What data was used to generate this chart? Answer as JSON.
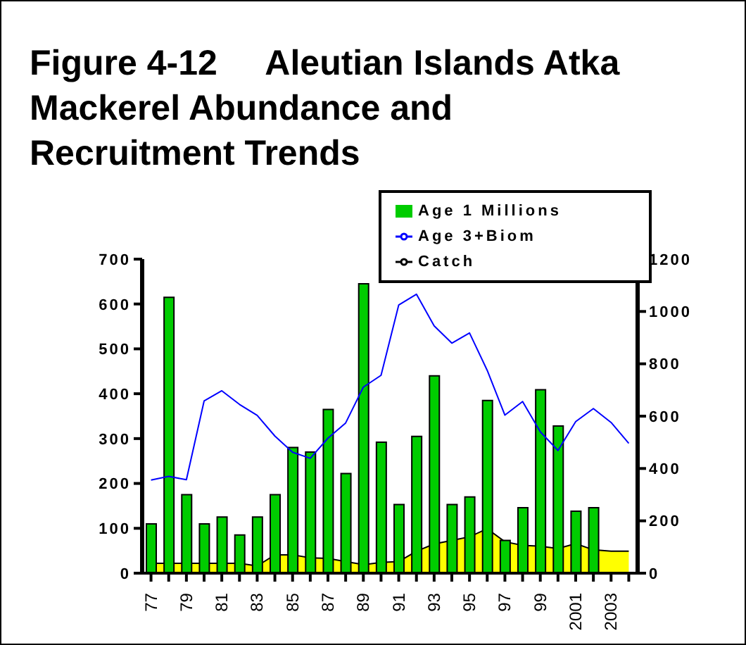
{
  "chart_data": {
    "type": "bar",
    "title": "Figure 4-12     Aleutian Islands Atka Mackerel Abundance and Recruitment Trends",
    "categories": [
      "77",
      null,
      "79",
      null,
      "81",
      null,
      "83",
      null,
      "85",
      null,
      "87",
      null,
      "89",
      null,
      "91",
      null,
      "93",
      null,
      "95",
      null,
      "97",
      null,
      "99",
      null,
      "2001",
      null,
      "2003",
      null
    ],
    "series": [
      {
        "name": "Catch",
        "type": "area",
        "color": "#ffff00",
        "values": [
          22,
          22,
          22,
          22,
          22,
          22,
          16,
          41,
          41,
          34,
          33,
          26,
          19,
          24,
          26,
          49,
          65,
          73,
          81,
          99,
          70,
          62,
          60,
          55,
          66,
          52,
          49,
          49
        ]
      },
      {
        "name": "Age 1 Millions",
        "color": "#00cc00",
        "values": [
          110,
          615,
          175,
          110,
          125,
          85,
          125,
          175,
          280,
          270,
          365,
          222,
          645,
          292,
          153,
          305,
          440,
          153,
          170,
          385,
          73,
          146,
          409,
          328,
          138,
          146,
          null,
          null
        ]
      },
      {
        "name": "Age 3+Biom",
        "type": "line",
        "axis": "y2",
        "color": "#0000ff",
        "values": [
          356,
          370,
          357,
          658,
          697,
          645,
          603,
          524,
          462,
          439,
          516,
          574,
          711,
          756,
          1025,
          1066,
          945,
          879,
          918,
          775,
          604,
          656,
          540,
          469,
          579,
          629,
          576,
          496
        ]
      }
    ],
    "ylim": [
      0,
      700
    ],
    "yticks": [
      0,
      100,
      200,
      300,
      400,
      500,
      600,
      700
    ],
    "y2lim": [
      0,
      1200
    ],
    "y2ticks": [
      0,
      200,
      400,
      600,
      800,
      1000,
      1200
    ],
    "legend": "top right",
    "grid": false,
    "marker": "none"
  }
}
